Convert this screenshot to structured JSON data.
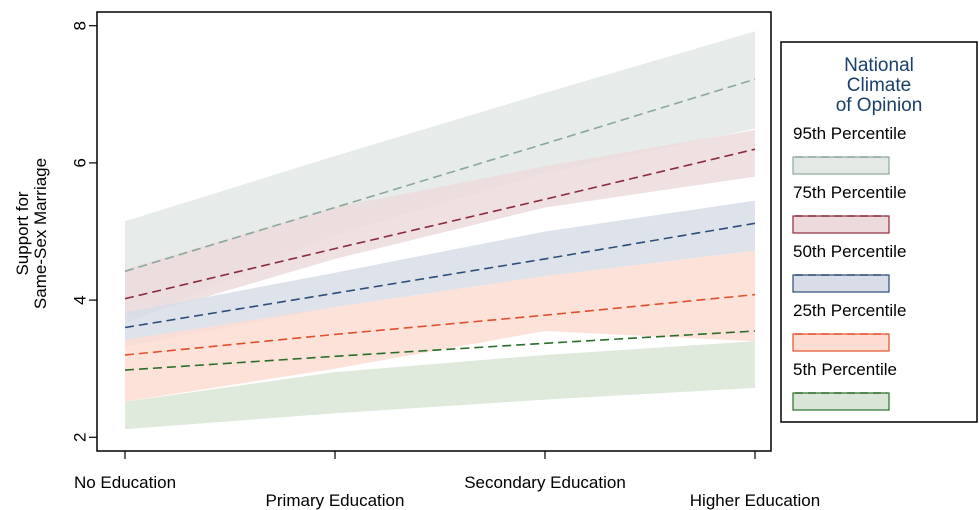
{
  "chart_data": {
    "type": "area",
    "title": "",
    "xlabel": "",
    "ylabel": [
      "Support for",
      "Same-Sex Marriage"
    ],
    "x": [
      0,
      1,
      2,
      3
    ],
    "x_tick_labels": [
      "No Education",
      "Primary Education",
      "Secondary Education",
      "Higher Education"
    ],
    "y_ticks": [
      2,
      4,
      6,
      8
    ],
    "xlim": [
      0,
      3
    ],
    "ylim": [
      1.8,
      8.2
    ],
    "grid": false,
    "legend": {
      "placement": "right",
      "title": [
        "National",
        "Climate",
        "of Opinion"
      ]
    },
    "series": [
      {
        "name": "95th Percentile",
        "color": "#8aa89b",
        "band_color": "#e3e8e5",
        "values": [
          4.42,
          5.35,
          6.28,
          7.22
        ],
        "lower": [
          3.65,
          4.95,
          5.85,
          6.5
        ],
        "upper": [
          5.15,
          6.1,
          7.02,
          7.92
        ]
      },
      {
        "name": "75th Percentile",
        "color": "#8b2a3a",
        "band_color": "#ecdadd",
        "values": [
          4.02,
          4.75,
          5.47,
          6.2
        ],
        "lower": [
          3.7,
          4.6,
          5.35,
          5.8
        ],
        "upper": [
          4.45,
          5.35,
          5.95,
          6.48
        ]
      },
      {
        "name": "50th Percentile",
        "color": "#2d4d7a",
        "band_color": "#d8dde7",
        "values": [
          3.6,
          4.1,
          4.6,
          5.12
        ],
        "lower": [
          3.32,
          3.9,
          4.35,
          4.72
        ],
        "upper": [
          3.82,
          4.4,
          5.0,
          5.45
        ]
      },
      {
        "name": "25th Percentile",
        "color": "#e0502a",
        "band_color": "#fdddd2",
        "values": [
          3.2,
          3.5,
          3.78,
          4.08
        ],
        "lower": [
          2.52,
          3.0,
          3.55,
          3.4
        ],
        "upper": [
          3.42,
          3.9,
          4.35,
          4.72
        ]
      },
      {
        "name": "5th  Percentile",
        "color": "#2a6e2a",
        "band_color": "#d9e5d6",
        "values": [
          2.98,
          3.18,
          3.37,
          3.55
        ],
        "lower": [
          2.12,
          2.35,
          2.55,
          2.72
        ],
        "upper": [
          2.52,
          2.95,
          3.2,
          3.4
        ]
      }
    ]
  }
}
